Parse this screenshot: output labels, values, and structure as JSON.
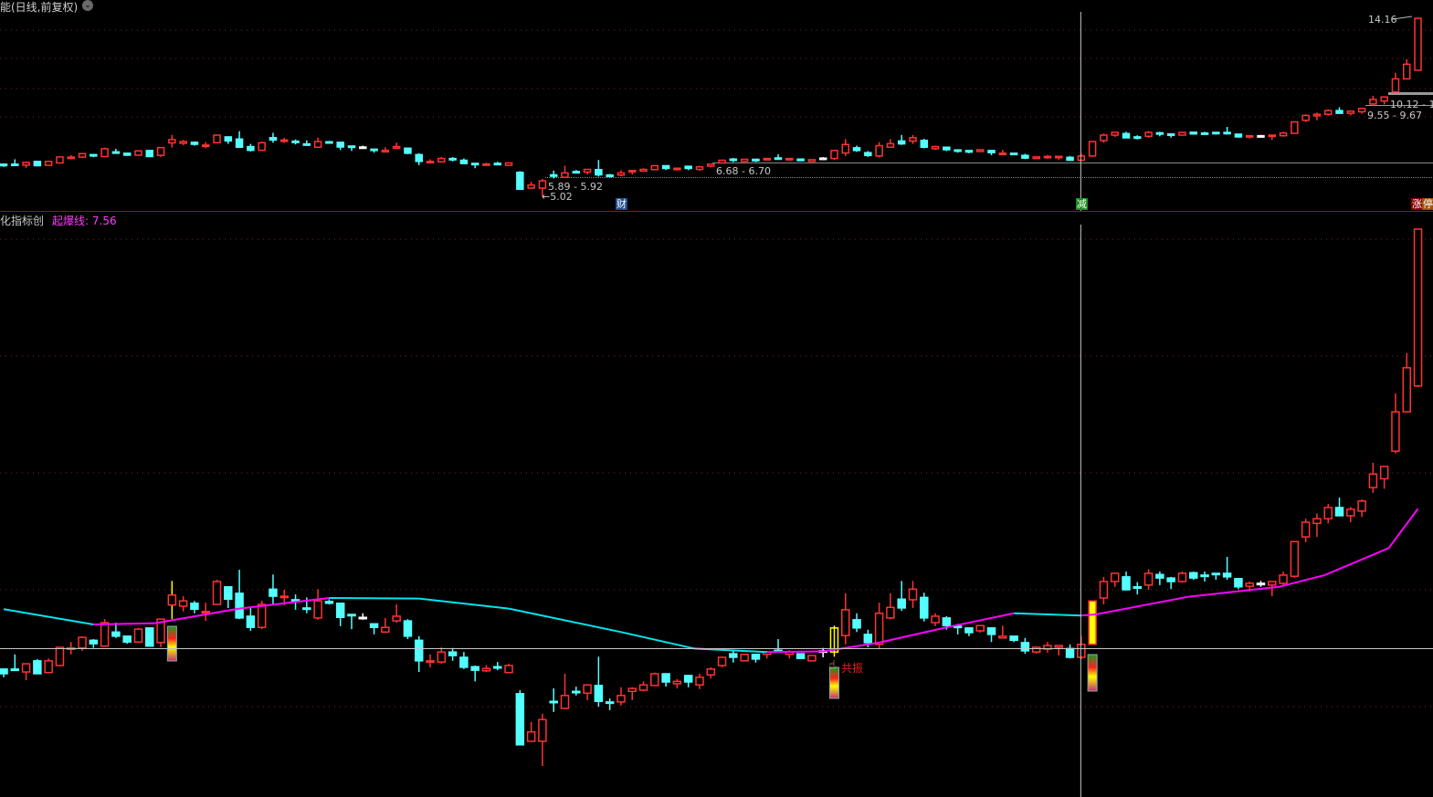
{
  "header": {
    "title": "能(日线,前复权)",
    "dropdown_icon": "chevron-down-circle-icon"
  },
  "indicator": {
    "name": "化指标创",
    "line_label": "起爆线:",
    "line_value": "7.56"
  },
  "colors": {
    "up": "#ff3232",
    "down": "#54ffff",
    "doji": "#ffffff",
    "signal": "#ffff00",
    "ma_up": "#ff00ff",
    "ma_down": "#00e5ee",
    "grid": "#8b1a1a",
    "crosshair": "#c8c8c8"
  },
  "labels": {
    "high_price": "14.16",
    "level_a": "10.12 - 1",
    "level_b": "9.55 - 9.67",
    "level_c": "6.68 - 6.70",
    "level_d": "5.89 - 5.92",
    "low_price": "5.02",
    "resonance": "共振"
  },
  "markers": [
    {
      "text": "财",
      "index": 55,
      "color": "#1f4e8c"
    },
    {
      "text": "减",
      "index": 96,
      "color": "#1a8c1a"
    },
    {
      "text": "涨",
      "index": 126,
      "color": "#8b0000"
    },
    {
      "text": "停",
      "index": 127,
      "color": "#a0520a"
    }
  ],
  "chart_data": {
    "type": "candlestick",
    "price_range": [
      5.02,
      14.16
    ],
    "signal_indices": [
      15,
      74,
      97
    ],
    "crosshair_index": 96,
    "candles": [
      [
        6.67,
        6.67,
        6.53,
        6.59
      ],
      [
        6.67,
        6.92,
        6.65,
        6.65
      ],
      [
        6.62,
        6.76,
        6.48,
        6.76
      ],
      [
        6.81,
        6.84,
        6.59,
        6.59
      ],
      [
        6.61,
        6.85,
        6.61,
        6.81
      ],
      [
        6.73,
        7.04,
        6.73,
        7.04
      ],
      [
        7.02,
        7.13,
        6.92,
        7.03
      ],
      [
        7.03,
        7.23,
        6.98,
        7.21
      ],
      [
        7.16,
        7.18,
        7.03,
        7.1
      ],
      [
        7.06,
        7.52,
        7.06,
        7.46
      ],
      [
        7.3,
        7.46,
        7.2,
        7.23
      ],
      [
        7.23,
        7.23,
        7.1,
        7.13
      ],
      [
        7.13,
        7.37,
        7.13,
        7.35
      ],
      [
        7.37,
        7.37,
        7.06,
        7.06
      ],
      [
        7.12,
        7.52,
        7.04,
        7.52
      ],
      [
        7.76,
        8.17,
        7.52,
        7.93
      ],
      [
        7.74,
        7.91,
        7.65,
        7.83
      ],
      [
        7.79,
        7.83,
        7.62,
        7.69
      ],
      [
        7.63,
        7.8,
        7.49,
        7.65
      ],
      [
        7.77,
        8.19,
        7.77,
        8.16
      ],
      [
        8.07,
        8.07,
        7.71,
        7.86
      ],
      [
        7.96,
        8.36,
        7.52,
        7.54
      ],
      [
        7.57,
        7.71,
        7.32,
        7.38
      ],
      [
        7.38,
        7.83,
        7.35,
        7.77
      ],
      [
        8.03,
        8.28,
        7.77,
        7.91
      ],
      [
        7.89,
        8.02,
        7.76,
        7.91
      ],
      [
        7.85,
        7.94,
        7.68,
        7.83
      ],
      [
        7.71,
        7.89,
        7.62,
        7.69
      ],
      [
        7.54,
        8.03,
        7.51,
        7.83
      ],
      [
        7.82,
        7.86,
        7.77,
        7.79
      ],
      [
        7.79,
        7.79,
        7.4,
        7.55
      ],
      [
        7.6,
        7.6,
        7.35,
        7.58
      ],
      [
        7.55,
        7.62,
        7.51,
        7.55
      ],
      [
        7.44,
        7.44,
        7.26,
        7.38
      ],
      [
        7.3,
        7.54,
        7.29,
        7.38
      ],
      [
        7.49,
        7.77,
        7.46,
        7.57
      ],
      [
        7.49,
        7.52,
        7.18,
        7.23
      ],
      [
        7.16,
        7.23,
        6.62,
        6.81
      ],
      [
        6.79,
        6.92,
        6.7,
        6.81
      ],
      [
        6.79,
        7.04,
        6.76,
        6.96
      ],
      [
        6.96,
        7.03,
        6.81,
        6.9
      ],
      [
        6.87,
        6.96,
        6.67,
        6.7
      ],
      [
        6.71,
        6.73,
        6.46,
        6.65
      ],
      [
        6.64,
        6.74,
        6.62,
        6.68
      ],
      [
        6.71,
        6.79,
        6.65,
        6.7
      ],
      [
        6.61,
        6.76,
        6.61,
        6.73
      ],
      [
        6.25,
        6.31,
        5.38,
        5.38
      ],
      [
        5.44,
        5.77,
        5.44,
        5.6
      ],
      [
        5.44,
        5.91,
        5.02,
        5.81
      ],
      [
        6.12,
        6.34,
        5.94,
        6.11
      ],
      [
        6.0,
        6.59,
        6.0,
        6.22
      ],
      [
        6.29,
        6.37,
        6.22,
        6.28
      ],
      [
        6.26,
        6.4,
        6.14,
        6.4
      ],
      [
        6.39,
        6.88,
        6.03,
        6.12
      ],
      [
        6.11,
        6.17,
        5.97,
        6.09
      ],
      [
        6.11,
        6.36,
        6.05,
        6.22
      ],
      [
        6.29,
        6.36,
        6.14,
        6.34
      ],
      [
        6.31,
        6.46,
        6.29,
        6.4
      ],
      [
        6.39,
        6.61,
        6.39,
        6.59
      ],
      [
        6.59,
        6.59,
        6.37,
        6.45
      ],
      [
        6.42,
        6.5,
        6.34,
        6.46
      ],
      [
        6.56,
        6.56,
        6.36,
        6.45
      ],
      [
        6.4,
        6.59,
        6.33,
        6.53
      ],
      [
        6.57,
        6.7,
        6.51,
        6.67
      ],
      [
        6.73,
        6.88,
        6.7,
        6.87
      ],
      [
        6.93,
        6.99,
        6.78,
        6.87
      ],
      [
        6.81,
        6.93,
        6.81,
        6.92
      ],
      [
        6.92,
        6.93,
        6.78,
        6.84
      ],
      [
        6.92,
        6.98,
        6.85,
        6.96
      ],
      [
        6.99,
        7.18,
        6.96,
        6.96
      ],
      [
        6.92,
        6.99,
        6.85,
        6.96
      ],
      [
        6.93,
        6.93,
        6.84,
        6.85
      ],
      [
        6.81,
        6.9,
        6.81,
        6.9
      ],
      [
        6.98,
        7.03,
        6.87,
        6.98
      ],
      [
        6.96,
        7.41,
        6.88,
        7.37
      ],
      [
        7.24,
        7.96,
        7.09,
        7.68
      ],
      [
        7.51,
        7.62,
        7.3,
        7.37
      ],
      [
        7.26,
        7.34,
        7.04,
        7.12
      ],
      [
        7.09,
        7.8,
        7.01,
        7.62
      ],
      [
        7.54,
        7.96,
        7.52,
        7.72
      ],
      [
        7.86,
        8.17,
        7.66,
        7.71
      ],
      [
        7.85,
        8.17,
        7.71,
        8.03
      ],
      [
        7.89,
        7.97,
        7.48,
        7.54
      ],
      [
        7.46,
        7.62,
        7.4,
        7.57
      ],
      [
        7.54,
        7.57,
        7.34,
        7.41
      ],
      [
        7.4,
        7.44,
        7.26,
        7.38
      ],
      [
        7.37,
        7.37,
        7.23,
        7.29
      ],
      [
        7.32,
        7.41,
        7.29,
        7.41
      ],
      [
        7.37,
        7.38,
        7.13,
        7.26
      ],
      [
        7.2,
        7.41,
        7.2,
        7.23
      ],
      [
        7.23,
        7.23,
        7.13,
        7.16
      ],
      [
        7.12,
        7.2,
        6.93,
        6.98
      ],
      [
        6.96,
        7.06,
        6.93,
        7.04
      ],
      [
        7.01,
        7.13,
        6.95,
        7.07
      ],
      [
        7.04,
        7.07,
        6.9,
        7.07
      ],
      [
        7.02,
        7.09,
        6.85,
        6.87
      ],
      [
        6.87,
        7.23,
        6.84,
        7.09
      ],
      [
        7.09,
        7.83,
        7.09,
        7.83
      ],
      [
        7.88,
        8.24,
        7.77,
        8.16
      ],
      [
        8.16,
        8.31,
        8.07,
        8.3
      ],
      [
        8.24,
        8.33,
        8.01,
        8.02
      ],
      [
        8.07,
        8.15,
        7.94,
        8.05
      ],
      [
        8.1,
        8.37,
        8.02,
        8.3
      ],
      [
        8.28,
        8.33,
        8.1,
        8.22
      ],
      [
        8.22,
        8.24,
        8.03,
        8.16
      ],
      [
        8.16,
        8.33,
        8.14,
        8.3
      ],
      [
        8.31,
        8.33,
        8.19,
        8.22
      ],
      [
        8.27,
        8.33,
        8.16,
        8.25
      ],
      [
        8.3,
        8.3,
        8.19,
        8.28
      ],
      [
        8.3,
        8.58,
        8.19,
        8.24
      ],
      [
        8.21,
        8.22,
        8.03,
        8.07
      ],
      [
        8.08,
        8.16,
        7.99,
        8.13
      ],
      [
        8.13,
        8.17,
        8.07,
        8.13
      ],
      [
        8.1,
        8.16,
        7.91,
        8.16
      ],
      [
        8.13,
        8.33,
        8.08,
        8.27
      ],
      [
        8.25,
        8.84,
        8.22,
        8.84
      ],
      [
        8.92,
        9.23,
        8.83,
        9.17
      ],
      [
        9.15,
        9.32,
        8.92,
        9.23
      ],
      [
        9.23,
        9.48,
        9.15,
        9.42
      ],
      [
        9.42,
        9.59,
        9.28,
        9.28
      ],
      [
        9.28,
        9.43,
        9.17,
        9.39
      ],
      [
        9.36,
        9.56,
        9.26,
        9.53
      ],
      [
        9.76,
        10.18,
        9.67,
        9.99
      ],
      [
        9.91,
        10.12,
        9.74,
        10.12
      ],
      [
        10.38,
        11.36,
        10.34,
        11.05
      ],
      [
        11.05,
        12.05,
        11.05,
        11.8
      ],
      [
        11.49,
        14.16,
        11.47,
        14.16
      ]
    ],
    "ma": {
      "name": "起爆线",
      "points": [
        [
          0,
          7.69
        ],
        [
          8,
          7.43
        ],
        [
          13.5,
          7.45
        ],
        [
          21,
          7.7
        ],
        [
          29,
          7.88
        ],
        [
          37,
          7.87
        ],
        [
          45,
          7.7
        ],
        [
          55,
          7.3
        ],
        [
          61.5,
          7.02
        ],
        [
          68,
          6.96
        ],
        [
          73,
          6.97
        ],
        [
          78,
          7.12
        ],
        [
          84,
          7.38
        ],
        [
          90,
          7.62
        ],
        [
          96,
          7.58
        ],
        [
          97.3,
          7.6
        ],
        [
          105.5,
          7.9
        ],
        [
          113.6,
          8.07
        ],
        [
          117.7,
          8.27
        ],
        [
          123.4,
          8.73
        ],
        [
          126,
          9.4
        ]
      ]
    },
    "levels": [
      {
        "label_key": "level_c",
        "price": 6.68
      },
      {
        "label_key": "level_d",
        "price": 5.92
      },
      {
        "label_key": "level_a",
        "price": 10.12
      },
      {
        "label_key": "level_b",
        "price": 9.67
      }
    ]
  }
}
